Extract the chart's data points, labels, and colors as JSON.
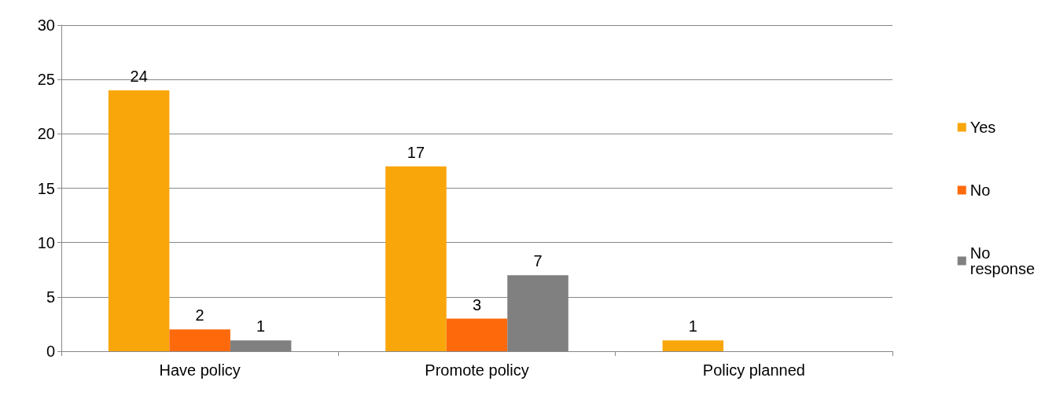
{
  "chart_data": {
    "type": "bar",
    "categories": [
      "Have policy",
      "Promote policy",
      "Policy planned"
    ],
    "series": [
      {
        "name": "Yes",
        "color": "#f9a60b",
        "values": [
          24,
          17,
          1
        ]
      },
      {
        "name": "No",
        "color": "#fe6a0b",
        "values": [
          2,
          3,
          null
        ]
      },
      {
        "name": "No response",
        "color": "#808080",
        "values": [
          1,
          7,
          null
        ]
      }
    ],
    "ylim": [
      0,
      30
    ],
    "yticks": [
      0,
      5,
      10,
      15,
      20,
      25,
      30
    ],
    "grid": "y",
    "legend": "right",
    "data_labels": true
  }
}
